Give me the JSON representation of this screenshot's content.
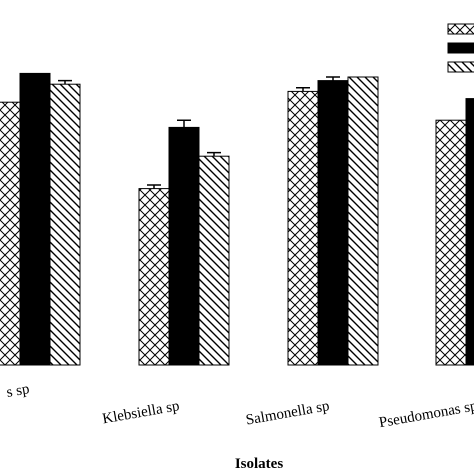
{
  "chart_data": {
    "type": "bar",
    "title": "",
    "xlabel": "Isolates",
    "ylabel": "",
    "categories": [
      "Escherichia sp",
      "Klebsiella sp",
      "Salmonella sp",
      "Pseudomonas sp"
    ],
    "visible_category_labels": [
      "s sp",
      "Klebsiella sp",
      "Salmonella sp",
      "Pseudomonas sp"
    ],
    "ylim": [
      0,
      100
    ],
    "grid": false,
    "legend_position": "top-right",
    "series": [
      {
        "pattern": "crosshatch",
        "values": [
          73,
          49,
          76,
          68
        ],
        "errors": [
          0,
          1,
          1,
          0
        ]
      },
      {
        "pattern": "solid-black",
        "values": [
          81,
          66,
          79,
          74
        ],
        "errors": [
          0,
          2,
          1,
          0
        ]
      },
      {
        "pattern": "diagonal-hatch",
        "values": [
          78,
          58,
          80,
          null
        ],
        "errors": [
          1,
          1,
          0,
          0
        ]
      }
    ]
  },
  "colors": {
    "bar_stroke": "#000000",
    "solid": "#000000",
    "background": "#ffffff"
  }
}
